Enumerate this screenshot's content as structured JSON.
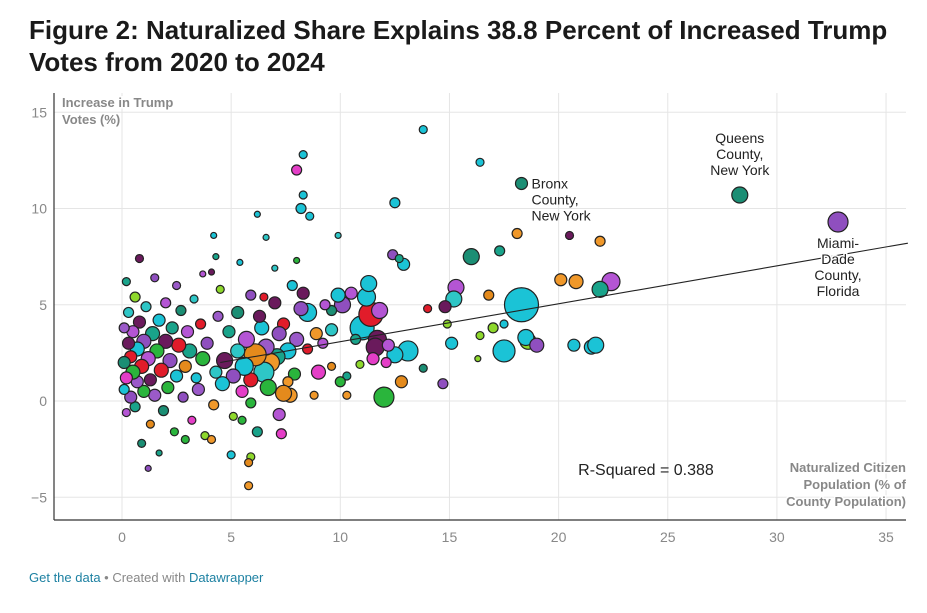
{
  "title": "Figure 2: Naturalized Share Explains 38.8 Percent of Increased Trump Votes from 2020 to 2024",
  "footer": {
    "get_data": "Get the data",
    "separator": " • Created with ",
    "datawrapper": "Datawrapper"
  },
  "chart_data": {
    "type": "scatter",
    "title": "Figure 2: Naturalized Share Explains 38.8 Percent of Increased Trump Votes from 2020 to 2024",
    "xlabel": [
      "Naturalized Citizen",
      "Population (% of",
      "County Population)"
    ],
    "ylabel": [
      "Increase in Trump",
      "Votes (%)"
    ],
    "xlim": [
      -3,
      36
    ],
    "ylim": [
      -6.2,
      15.5
    ],
    "x_ticks": [
      0,
      5,
      10,
      15,
      20,
      25,
      30,
      35
    ],
    "y_ticks": [
      15,
      10,
      5,
      0,
      -5
    ],
    "y_tick_labels": [
      "15",
      "10",
      "5",
      "0",
      "−5"
    ],
    "grid": true,
    "annotation": "R-Squared = 0.388",
    "trendline": {
      "x": [
        4.5,
        36
      ],
      "y": [
        2.0,
        8.2
      ]
    },
    "callouts": [
      {
        "lines": [
          "Bronx",
          "County,",
          "New York"
        ],
        "x": 18.3,
        "y": 11.3
      },
      {
        "lines": [
          "Queens",
          "County,",
          "New York"
        ],
        "x": 28.3,
        "y": 10.7
      },
      {
        "lines": [
          "Miami-",
          "Dade",
          "County,",
          "Florida"
        ],
        "x": 32.8,
        "y": 9.3
      }
    ],
    "palette": [
      "#1bc3d6",
      "#2ec6c6",
      "#19a38a",
      "#8f4fbf",
      "#b455d4",
      "#6a1a5c",
      "#e11c2a",
      "#e48a1c",
      "#8ed82c",
      "#2ab53c",
      "#e43ec7",
      "#1b8e74",
      "#9b5ac9",
      "#f0982a",
      "#52c3e0"
    ],
    "points": [
      {
        "x": 32.8,
        "y": 9.3,
        "r": 10,
        "c": 3
      },
      {
        "x": 28.3,
        "y": 10.7,
        "r": 8,
        "c": 11
      },
      {
        "x": 18.3,
        "y": 11.3,
        "r": 6,
        "c": 11
      },
      {
        "x": 18.3,
        "y": 5.0,
        "r": 17,
        "c": 0
      },
      {
        "x": 13.8,
        "y": 14.1,
        "r": 4,
        "c": 0
      },
      {
        "x": 16.4,
        "y": 12.4,
        "r": 4,
        "c": 0
      },
      {
        "x": 12.5,
        "y": 10.3,
        "r": 5,
        "c": 0
      },
      {
        "x": 8.3,
        "y": 12.8,
        "r": 4,
        "c": 0
      },
      {
        "x": 8.0,
        "y": 12.0,
        "r": 5,
        "c": 10
      },
      {
        "x": 8.3,
        "y": 10.7,
        "r": 4,
        "c": 0
      },
      {
        "x": 8.2,
        "y": 10.0,
        "r": 5,
        "c": 0
      },
      {
        "x": 8.6,
        "y": 9.6,
        "r": 4,
        "c": 0
      },
      {
        "x": 6.2,
        "y": 9.7,
        "r": 3,
        "c": 0
      },
      {
        "x": 6.6,
        "y": 8.5,
        "r": 3,
        "c": 1
      },
      {
        "x": 9.9,
        "y": 8.6,
        "r": 3,
        "c": 1
      },
      {
        "x": 18.1,
        "y": 8.7,
        "r": 5,
        "c": 13
      },
      {
        "x": 20.5,
        "y": 8.6,
        "r": 4,
        "c": 5
      },
      {
        "x": 21.9,
        "y": 8.3,
        "r": 5,
        "c": 13
      },
      {
        "x": 12.4,
        "y": 7.6,
        "r": 5,
        "c": 3
      },
      {
        "x": 12.9,
        "y": 7.1,
        "r": 6,
        "c": 0
      },
      {
        "x": 16.0,
        "y": 7.5,
        "r": 8,
        "c": 11
      },
      {
        "x": 17.3,
        "y": 7.8,
        "r": 5,
        "c": 2
      },
      {
        "x": 20.1,
        "y": 6.3,
        "r": 6,
        "c": 13
      },
      {
        "x": 20.8,
        "y": 6.2,
        "r": 7,
        "c": 13
      },
      {
        "x": 22.4,
        "y": 6.2,
        "r": 9,
        "c": 4
      },
      {
        "x": 21.9,
        "y": 5.8,
        "r": 8,
        "c": 2
      },
      {
        "x": 15.3,
        "y": 5.9,
        "r": 8,
        "c": 4
      },
      {
        "x": 15.2,
        "y": 5.3,
        "r": 8,
        "c": 1
      },
      {
        "x": 16.8,
        "y": 5.5,
        "r": 5,
        "c": 7
      },
      {
        "x": 14.8,
        "y": 4.9,
        "r": 6,
        "c": 5
      },
      {
        "x": 14.9,
        "y": 4.0,
        "r": 4,
        "c": 8
      },
      {
        "x": 15.1,
        "y": 3.0,
        "r": 6,
        "c": 0
      },
      {
        "x": 16.4,
        "y": 3.4,
        "r": 4,
        "c": 8
      },
      {
        "x": 17.0,
        "y": 3.8,
        "r": 5,
        "c": 8
      },
      {
        "x": 17.5,
        "y": 4.0,
        "r": 4,
        "c": 0
      },
      {
        "x": 18.6,
        "y": 3.1,
        "r": 8,
        "c": 8
      },
      {
        "x": 18.5,
        "y": 3.3,
        "r": 8,
        "c": 0
      },
      {
        "x": 19.0,
        "y": 2.9,
        "r": 7,
        "c": 3
      },
      {
        "x": 17.5,
        "y": 2.6,
        "r": 11,
        "c": 0
      },
      {
        "x": 16.3,
        "y": 2.2,
        "r": 3,
        "c": 8
      },
      {
        "x": 20.7,
        "y": 2.9,
        "r": 6,
        "c": 0
      },
      {
        "x": 21.5,
        "y": 2.8,
        "r": 7,
        "c": 0
      },
      {
        "x": 21.7,
        "y": 2.9,
        "r": 8,
        "c": 0
      },
      {
        "x": 14.0,
        "y": 4.8,
        "r": 4,
        "c": 6
      },
      {
        "x": 13.1,
        "y": 2.6,
        "r": 10,
        "c": 0
      },
      {
        "x": 12.5,
        "y": 2.4,
        "r": 8,
        "c": 0
      },
      {
        "x": 12.8,
        "y": 1.0,
        "r": 6,
        "c": 7
      },
      {
        "x": 14.7,
        "y": 0.9,
        "r": 5,
        "c": 3
      },
      {
        "x": 12.0,
        "y": 0.2,
        "r": 10,
        "c": 9
      },
      {
        "x": 11.0,
        "y": 3.8,
        "r": 12,
        "c": 0
      },
      {
        "x": 11.4,
        "y": 4.5,
        "r": 12,
        "c": 6
      },
      {
        "x": 11.7,
        "y": 3.2,
        "r": 9,
        "c": 5
      },
      {
        "x": 11.6,
        "y": 2.8,
        "r": 9,
        "c": 5
      },
      {
        "x": 11.2,
        "y": 5.4,
        "r": 9,
        "c": 0
      },
      {
        "x": 11.8,
        "y": 4.7,
        "r": 8,
        "c": 4
      },
      {
        "x": 11.3,
        "y": 6.1,
        "r": 8,
        "c": 0
      },
      {
        "x": 11.5,
        "y": 2.2,
        "r": 6,
        "c": 10
      },
      {
        "x": 10.1,
        "y": 5.0,
        "r": 8,
        "c": 3
      },
      {
        "x": 9.9,
        "y": 5.5,
        "r": 7,
        "c": 0
      },
      {
        "x": 10.5,
        "y": 5.6,
        "r": 6,
        "c": 4
      },
      {
        "x": 10.9,
        "y": 1.9,
        "r": 4,
        "c": 8
      },
      {
        "x": 10.3,
        "y": 1.3,
        "r": 4,
        "c": 2
      },
      {
        "x": 10.0,
        "y": 1.0,
        "r": 5,
        "c": 9
      },
      {
        "x": 10.3,
        "y": 0.3,
        "r": 4,
        "c": 13
      },
      {
        "x": 9.6,
        "y": 3.7,
        "r": 6,
        "c": 1
      },
      {
        "x": 9.6,
        "y": 4.7,
        "r": 5,
        "c": 11
      },
      {
        "x": 9.2,
        "y": 3.0,
        "r": 5,
        "c": 4
      },
      {
        "x": 9.0,
        "y": 1.5,
        "r": 7,
        "c": 10
      },
      {
        "x": 8.9,
        "y": 3.5,
        "r": 6,
        "c": 13
      },
      {
        "x": 8.5,
        "y": 4.6,
        "r": 9,
        "c": 0
      },
      {
        "x": 8.2,
        "y": 4.8,
        "r": 7,
        "c": 3
      },
      {
        "x": 8.5,
        "y": 2.7,
        "r": 5,
        "c": 6
      },
      {
        "x": 8.3,
        "y": 5.6,
        "r": 6,
        "c": 5
      },
      {
        "x": 8.0,
        "y": 3.2,
        "r": 7,
        "c": 12
      },
      {
        "x": 7.9,
        "y": 1.4,
        "r": 6,
        "c": 9
      },
      {
        "x": 7.8,
        "y": 6.0,
        "r": 5,
        "c": 0
      },
      {
        "x": 7.6,
        "y": 2.6,
        "r": 8,
        "c": 0
      },
      {
        "x": 7.4,
        "y": 4.0,
        "r": 6,
        "c": 6
      },
      {
        "x": 7.6,
        "y": 1.0,
        "r": 5,
        "c": 13
      },
      {
        "x": 7.7,
        "y": 0.3,
        "r": 7,
        "c": 13
      },
      {
        "x": 7.4,
        "y": 0.4,
        "r": 8,
        "c": 7
      },
      {
        "x": 7.2,
        "y": -0.7,
        "r": 6,
        "c": 4
      },
      {
        "x": 7.1,
        "y": 2.3,
        "r": 8,
        "c": 2
      },
      {
        "x": 7.2,
        "y": 3.5,
        "r": 7,
        "c": 3
      },
      {
        "x": 6.8,
        "y": 2.0,
        "r": 9,
        "c": 13
      },
      {
        "x": 6.6,
        "y": 2.8,
        "r": 8,
        "c": 12
      },
      {
        "x": 6.5,
        "y": 1.5,
        "r": 10,
        "c": 1
      },
      {
        "x": 6.7,
        "y": 0.7,
        "r": 8,
        "c": 9
      },
      {
        "x": 6.4,
        "y": 3.8,
        "r": 7,
        "c": 0
      },
      {
        "x": 6.3,
        "y": 4.4,
        "r": 6,
        "c": 5
      },
      {
        "x": 6.1,
        "y": 2.4,
        "r": 11,
        "c": 7
      },
      {
        "x": 5.9,
        "y": 1.1,
        "r": 7,
        "c": 6
      },
      {
        "x": 5.9,
        "y": -0.1,
        "r": 5,
        "c": 9
      },
      {
        "x": 5.7,
        "y": 3.2,
        "r": 8,
        "c": 4
      },
      {
        "x": 5.6,
        "y": 1.8,
        "r": 9,
        "c": 0
      },
      {
        "x": 5.5,
        "y": 0.5,
        "r": 6,
        "c": 10
      },
      {
        "x": 5.3,
        "y": 4.6,
        "r": 6,
        "c": 11
      },
      {
        "x": 5.3,
        "y": 2.6,
        "r": 7,
        "c": 1
      },
      {
        "x": 5.1,
        "y": 1.3,
        "r": 7,
        "c": 3
      },
      {
        "x": 5.1,
        "y": -0.8,
        "r": 4,
        "c": 8
      },
      {
        "x": 5.9,
        "y": -2.9,
        "r": 4,
        "c": 8
      },
      {
        "x": 5.8,
        "y": -3.2,
        "r": 4,
        "c": 7
      },
      {
        "x": 5.8,
        "y": -4.4,
        "r": 4,
        "c": 13
      },
      {
        "x": 5.0,
        "y": -2.8,
        "r": 4,
        "c": 0
      },
      {
        "x": 5.5,
        "y": -1.0,
        "r": 4,
        "c": 9
      },
      {
        "x": 6.2,
        "y": -1.6,
        "r": 5,
        "c": 2
      },
      {
        "x": 7.3,
        "y": -1.7,
        "r": 5,
        "c": 10
      },
      {
        "x": 4.9,
        "y": 3.6,
        "r": 6,
        "c": 2
      },
      {
        "x": 4.7,
        "y": 2.1,
        "r": 8,
        "c": 5
      },
      {
        "x": 4.6,
        "y": 0.9,
        "r": 7,
        "c": 0
      },
      {
        "x": 4.5,
        "y": 5.8,
        "r": 4,
        "c": 8
      },
      {
        "x": 4.4,
        "y": 4.4,
        "r": 5,
        "c": 12
      },
      {
        "x": 4.3,
        "y": 1.5,
        "r": 6,
        "c": 1
      },
      {
        "x": 4.2,
        "y": -0.2,
        "r": 5,
        "c": 13
      },
      {
        "x": 4.2,
        "y": 8.6,
        "r": 3,
        "c": 0
      },
      {
        "x": 4.3,
        "y": 7.5,
        "r": 3,
        "c": 2
      },
      {
        "x": 4.1,
        "y": 6.7,
        "r": 3,
        "c": 5
      },
      {
        "x": 3.9,
        "y": 3.0,
        "r": 6,
        "c": 3
      },
      {
        "x": 3.7,
        "y": 2.2,
        "r": 7,
        "c": 9
      },
      {
        "x": 3.6,
        "y": 4.0,
        "r": 5,
        "c": 6
      },
      {
        "x": 3.5,
        "y": 0.6,
        "r": 6,
        "c": 12
      },
      {
        "x": 3.4,
        "y": 1.2,
        "r": 5,
        "c": 0
      },
      {
        "x": 3.3,
        "y": 5.3,
        "r": 4,
        "c": 1
      },
      {
        "x": 3.2,
        "y": -1.0,
        "r": 4,
        "c": 10
      },
      {
        "x": 3.1,
        "y": 2.6,
        "r": 7,
        "c": 2
      },
      {
        "x": 3.0,
        "y": 3.6,
        "r": 6,
        "c": 4
      },
      {
        "x": 2.9,
        "y": 1.8,
        "r": 6,
        "c": 7
      },
      {
        "x": 2.8,
        "y": 0.2,
        "r": 5,
        "c": 3
      },
      {
        "x": 2.7,
        "y": 4.7,
        "r": 5,
        "c": 11
      },
      {
        "x": 2.6,
        "y": 2.9,
        "r": 7,
        "c": 6
      },
      {
        "x": 2.5,
        "y": 6.0,
        "r": 4,
        "c": 12
      },
      {
        "x": 2.5,
        "y": 1.3,
        "r": 6,
        "c": 0
      },
      {
        "x": 2.4,
        "y": -1.6,
        "r": 4,
        "c": 9
      },
      {
        "x": 2.3,
        "y": 3.8,
        "r": 6,
        "c": 2
      },
      {
        "x": 2.2,
        "y": 2.1,
        "r": 7,
        "c": 3
      },
      {
        "x": 2.1,
        "y": 0.7,
        "r": 6,
        "c": 9
      },
      {
        "x": 2.0,
        "y": 5.1,
        "r": 5,
        "c": 4
      },
      {
        "x": 2.0,
        "y": 3.1,
        "r": 7,
        "c": 5
      },
      {
        "x": 1.9,
        "y": -0.5,
        "r": 5,
        "c": 11
      },
      {
        "x": 1.8,
        "y": 1.6,
        "r": 7,
        "c": 6
      },
      {
        "x": 1.7,
        "y": 4.2,
        "r": 6,
        "c": 0
      },
      {
        "x": 1.6,
        "y": 2.6,
        "r": 7,
        "c": 9
      },
      {
        "x": 1.5,
        "y": 0.3,
        "r": 6,
        "c": 12
      },
      {
        "x": 1.5,
        "y": 6.4,
        "r": 4,
        "c": 3
      },
      {
        "x": 1.4,
        "y": 3.5,
        "r": 7,
        "c": 2
      },
      {
        "x": 1.3,
        "y": 1.1,
        "r": 6,
        "c": 5
      },
      {
        "x": 1.3,
        "y": -1.2,
        "r": 4,
        "c": 7
      },
      {
        "x": 1.2,
        "y": -3.5,
        "r": 3,
        "c": 3
      },
      {
        "x": 1.2,
        "y": 2.2,
        "r": 7,
        "c": 4
      },
      {
        "x": 1.1,
        "y": 4.9,
        "r": 5,
        "c": 1
      },
      {
        "x": 1.0,
        "y": 0.5,
        "r": 6,
        "c": 9
      },
      {
        "x": 1.0,
        "y": 3.1,
        "r": 7,
        "c": 3
      },
      {
        "x": 0.9,
        "y": 1.8,
        "r": 7,
        "c": 6
      },
      {
        "x": 0.9,
        "y": -2.2,
        "r": 4,
        "c": 11
      },
      {
        "x": 0.8,
        "y": 4.1,
        "r": 6,
        "c": 5
      },
      {
        "x": 0.8,
        "y": 7.4,
        "r": 4,
        "c": 5
      },
      {
        "x": 0.7,
        "y": 1.0,
        "r": 6,
        "c": 12
      },
      {
        "x": 0.7,
        "y": 2.7,
        "r": 7,
        "c": 0
      },
      {
        "x": 0.6,
        "y": -0.3,
        "r": 5,
        "c": 2
      },
      {
        "x": 0.6,
        "y": 5.4,
        "r": 5,
        "c": 8
      },
      {
        "x": 0.5,
        "y": 3.6,
        "r": 6,
        "c": 4
      },
      {
        "x": 0.5,
        "y": 1.5,
        "r": 7,
        "c": 9
      },
      {
        "x": 0.4,
        "y": 2.3,
        "r": 6,
        "c": 6
      },
      {
        "x": 0.4,
        "y": 0.2,
        "r": 6,
        "c": 3
      },
      {
        "x": 0.3,
        "y": 4.6,
        "r": 5,
        "c": 1
      },
      {
        "x": 0.3,
        "y": 3.0,
        "r": 6,
        "c": 5
      },
      {
        "x": 0.2,
        "y": 1.2,
        "r": 6,
        "c": 10
      },
      {
        "x": 0.2,
        "y": 6.2,
        "r": 4,
        "c": 2
      },
      {
        "x": 0.1,
        "y": 2.0,
        "r": 6,
        "c": 11
      },
      {
        "x": 0.1,
        "y": 3.8,
        "r": 5,
        "c": 12
      },
      {
        "x": 0.1,
        "y": 0.6,
        "r": 5,
        "c": 0
      },
      {
        "x": 0.2,
        "y": -0.6,
        "r": 4,
        "c": 4
      },
      {
        "x": 3.8,
        "y": -1.8,
        "r": 4,
        "c": 8
      },
      {
        "x": 4.1,
        "y": -2.0,
        "r": 4,
        "c": 13
      },
      {
        "x": 2.9,
        "y": -2.0,
        "r": 4,
        "c": 9
      },
      {
        "x": 1.7,
        "y": -2.7,
        "r": 3,
        "c": 2
      },
      {
        "x": 6.5,
        "y": 5.4,
        "r": 4,
        "c": 6
      },
      {
        "x": 7.0,
        "y": 5.1,
        "r": 6,
        "c": 5
      },
      {
        "x": 5.9,
        "y": 5.5,
        "r": 5,
        "c": 3
      },
      {
        "x": 9.3,
        "y": 5.0,
        "r": 5,
        "c": 4
      },
      {
        "x": 8.8,
        "y": 0.3,
        "r": 4,
        "c": 13
      },
      {
        "x": 9.6,
        "y": 1.8,
        "r": 4,
        "c": 7
      },
      {
        "x": 10.7,
        "y": 3.2,
        "r": 5,
        "c": 2
      },
      {
        "x": 12.1,
        "y": 2.0,
        "r": 5,
        "c": 10
      },
      {
        "x": 12.2,
        "y": 2.9,
        "r": 6,
        "c": 4
      },
      {
        "x": 13.8,
        "y": 1.7,
        "r": 4,
        "c": 11
      },
      {
        "x": 8.0,
        "y": 7.3,
        "r": 3,
        "c": 9
      },
      {
        "x": 7.0,
        "y": 6.9,
        "r": 3,
        "c": 1
      },
      {
        "x": 3.7,
        "y": 6.6,
        "r": 3,
        "c": 4
      },
      {
        "x": 5.4,
        "y": 7.2,
        "r": 3,
        "c": 0
      },
      {
        "x": 12.7,
        "y": 7.4,
        "r": 4,
        "c": 2
      }
    ]
  }
}
